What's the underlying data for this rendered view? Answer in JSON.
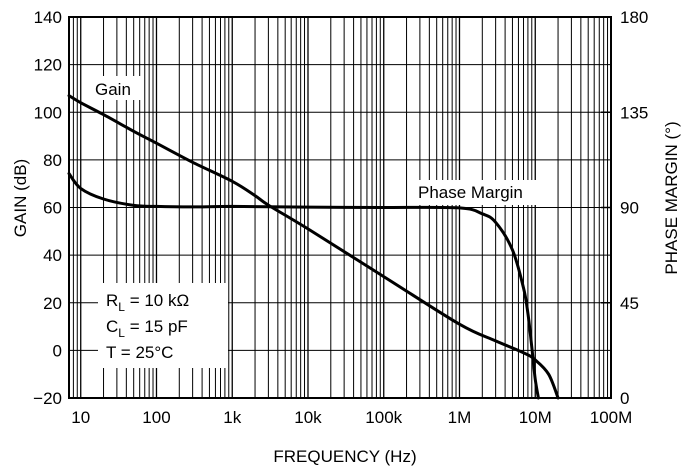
{
  "chart_data": {
    "type": "line",
    "xlabel": "FREQUENCY (Hz)",
    "ylabel_left": "GAIN (dB)",
    "ylabel_right": "PHASE MARGIN (°)",
    "x_scale": "log",
    "xlim": [
      7,
      100000000
    ],
    "ylim_left": [
      -20,
      140
    ],
    "ylim_right": [
      0,
      180
    ],
    "grid": true,
    "x_ticks": [
      {
        "value": 10,
        "label": "10"
      },
      {
        "value": 100,
        "label": "100"
      },
      {
        "value": 1000,
        "label": "1k"
      },
      {
        "value": 10000,
        "label": "10k"
      },
      {
        "value": 100000,
        "label": "100k"
      },
      {
        "value": 1000000,
        "label": "1M"
      },
      {
        "value": 10000000,
        "label": "10M"
      },
      {
        "value": 100000000,
        "label": "100M"
      }
    ],
    "y_ticks_left": [
      {
        "value": -20,
        "label": "−20"
      },
      {
        "value": 0,
        "label": "0"
      },
      {
        "value": 20,
        "label": "20"
      },
      {
        "value": 40,
        "label": "40"
      },
      {
        "value": 60,
        "label": "60"
      },
      {
        "value": 80,
        "label": "80"
      },
      {
        "value": 100,
        "label": "100"
      },
      {
        "value": 120,
        "label": "120"
      },
      {
        "value": 140,
        "label": "140"
      }
    ],
    "y_ticks_right": [
      {
        "value": 0,
        "label": "0"
      },
      {
        "value": 45,
        "label": "45"
      },
      {
        "value": 90,
        "label": "90"
      },
      {
        "value": 135,
        "label": "135"
      },
      {
        "value": 180,
        "label": "180"
      }
    ],
    "series": [
      {
        "name": "Gain",
        "axis": "left",
        "x": [
          7,
          10,
          20,
          50,
          100,
          300,
          1000,
          2000,
          3000,
          10000,
          100000,
          1000000,
          3000000,
          7000000,
          10000000,
          15000000,
          20000000
        ],
        "values": [
          107,
          104,
          99,
          92,
          87,
          79,
          71,
          65,
          61,
          51,
          31,
          11,
          4,
          -1,
          -4,
          -10,
          -20
        ]
      },
      {
        "name": "Phase Margin",
        "axis": "right",
        "x": [
          7,
          10,
          20,
          50,
          100,
          300,
          1000,
          10000,
          100000,
          1000000,
          2000000,
          3000000,
          5000000,
          7000000,
          8000000,
          9000000,
          10000000,
          11000000
        ],
        "values": [
          106,
          99,
          94,
          91,
          90.5,
          90.3,
          90.5,
          90.2,
          90,
          89.8,
          87,
          83,
          70,
          52,
          40,
          24,
          9,
          0
        ]
      }
    ],
    "annotations": [
      {
        "text": "Gain"
      },
      {
        "text": "Phase Margin"
      },
      {
        "main": "R",
        "sub": "L",
        "rest": " = 10 kΩ"
      },
      {
        "main": "C",
        "sub": "L",
        "rest": " = 15 pF"
      },
      {
        "main": "T = 25°C",
        "sub": "",
        "rest": ""
      }
    ]
  }
}
